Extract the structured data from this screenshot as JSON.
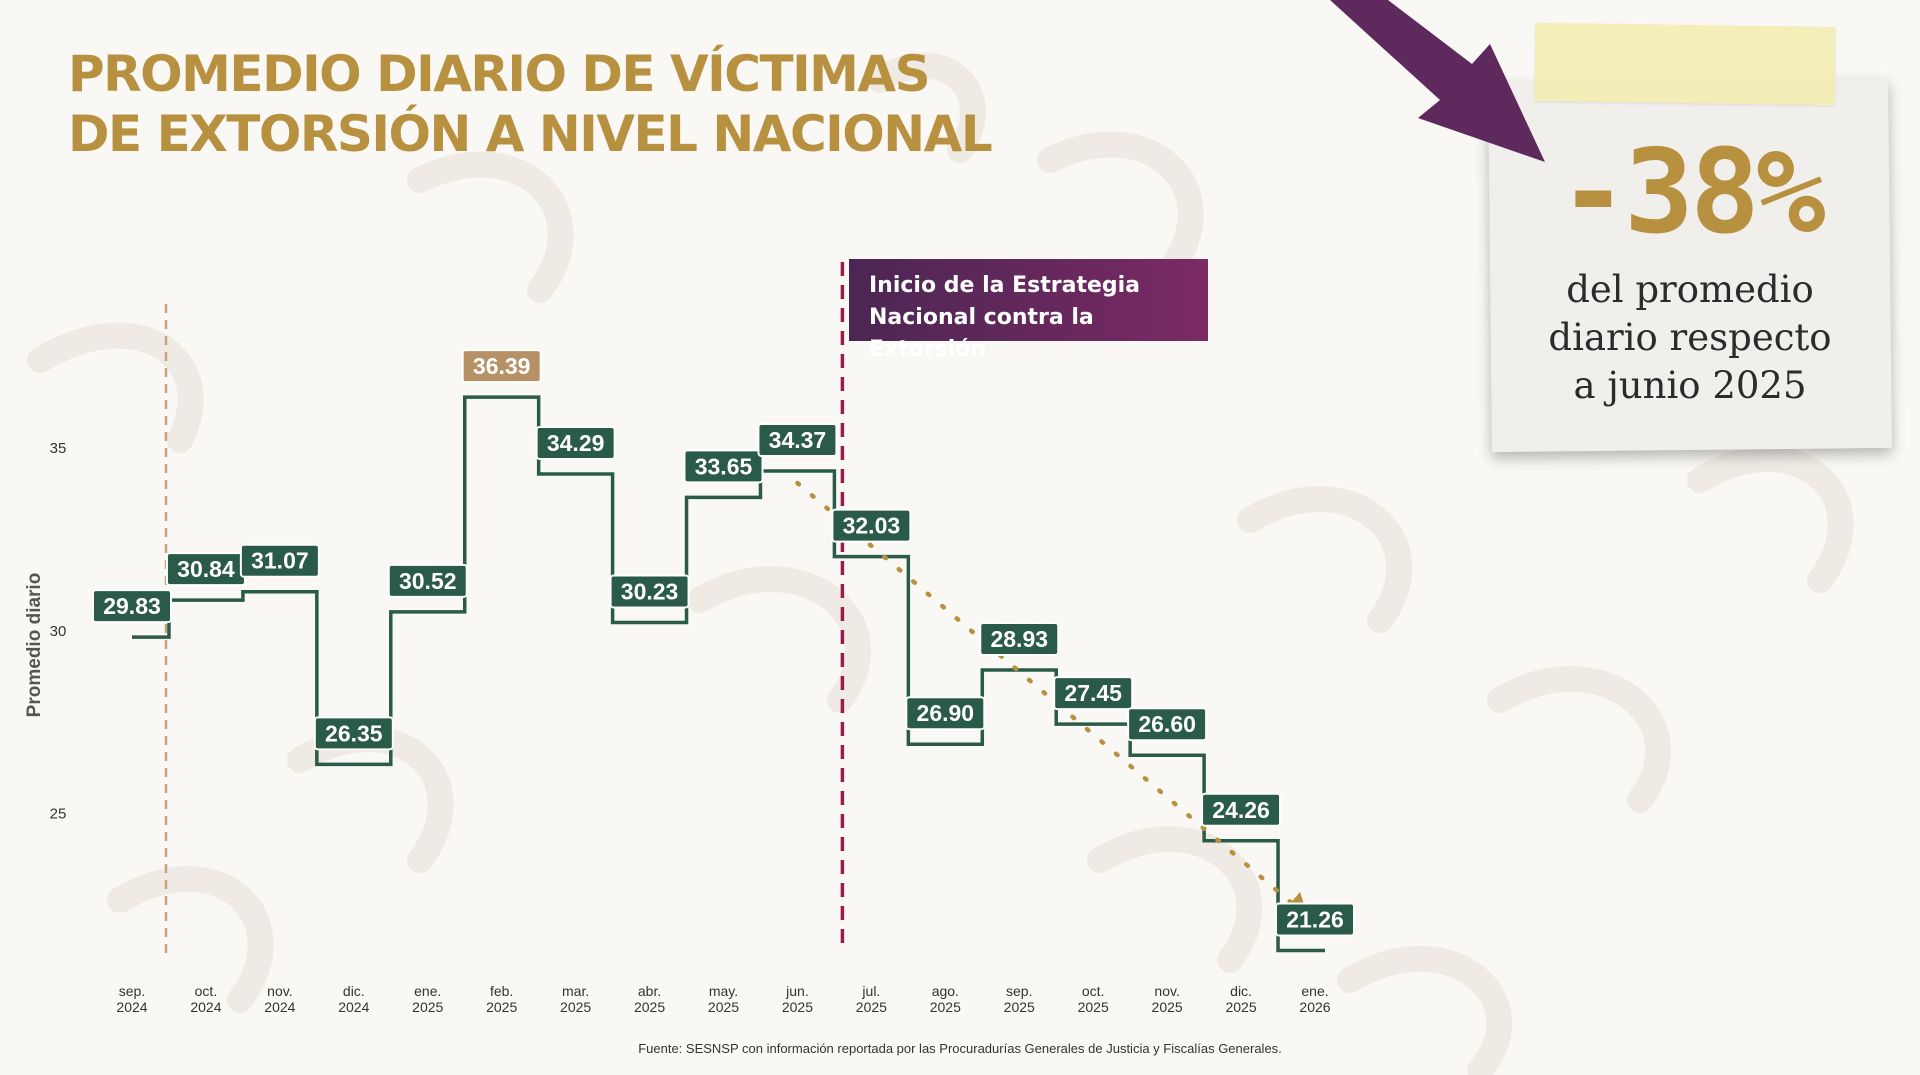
{
  "title": {
    "line1": "PROMEDIO DIARIO DE VÍCTIMAS",
    "line2": "DE EXTORSIÓN A NIVEL NACIONAL"
  },
  "callout": {
    "line1": "Inicio de la Estrategia",
    "line2": "Nacional contra la Extorsión"
  },
  "note": {
    "big": "-38%",
    "line1": "del promedio",
    "line2": "diario respecto",
    "line3": "a junio 2025"
  },
  "source": "Fuente: SESNSP con información reportada por las Procuradurías Generales de Justicia y Fiscalías Generales.",
  "colors": {
    "title": "#b7913f",
    "line": "#2a5a48",
    "label_bg": "#2a5a48",
    "peak_bg": "#b69165",
    "strategy_line": "#9b1b4f",
    "trend": "#b7913f",
    "callout_from": "#4b2653",
    "callout_to": "#7b2a64",
    "arrow": "#5e2a5e"
  },
  "chart_data": {
    "type": "line",
    "step": true,
    "ylabel": "Promedio diario",
    "yticks": [
      25,
      30,
      35
    ],
    "ylim": [
      21.0,
      38.5
    ],
    "categories": [
      [
        "sep.",
        "2024"
      ],
      [
        "oct.",
        "2024"
      ],
      [
        "nov.",
        "2024"
      ],
      [
        "dic.",
        "2024"
      ],
      [
        "ene.",
        "2025"
      ],
      [
        "feb.",
        "2025"
      ],
      [
        "mar.",
        "2025"
      ],
      [
        "abr.",
        "2025"
      ],
      [
        "may.",
        "2025"
      ],
      [
        "jun.",
        "2025"
      ],
      [
        "jul.",
        "2025"
      ],
      [
        "ago.",
        "2025"
      ],
      [
        "sep.",
        "2025"
      ],
      [
        "oct.",
        "2025"
      ],
      [
        "nov.",
        "2025"
      ],
      [
        "dic.",
        "2025"
      ],
      [
        "ene.",
        "2026"
      ]
    ],
    "values": [
      29.83,
      30.84,
      31.07,
      26.35,
      30.52,
      36.39,
      34.29,
      30.23,
      33.65,
      34.37,
      32.03,
      26.9,
      28.93,
      27.45,
      26.6,
      24.26,
      21.26
    ],
    "labels": [
      "29.83",
      "30.84",
      "31.07",
      "26.35",
      "30.52",
      "36.39",
      "34.29",
      "30.23",
      "33.65",
      "34.37",
      "32.03",
      "26.90",
      "28.93",
      "27.45",
      "26.60",
      "24.26",
      "21.26"
    ],
    "highlight_index": 5,
    "strategy_start_index": 10,
    "trend_from_index": 9,
    "trend_to_index": 16,
    "grid": false
  }
}
